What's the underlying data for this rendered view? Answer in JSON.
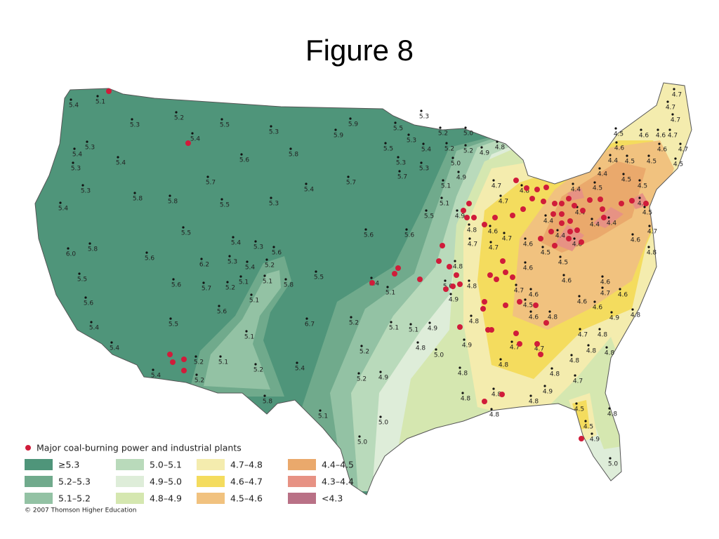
{
  "header": {
    "title": "Figure 8"
  },
  "map": {
    "labels": [
      "5.4",
      "5.1",
      "5.2",
      "5.5",
      "5.3",
      "5.9",
      "5.3",
      "5.3",
      "5.4",
      "5.4",
      "5.3",
      "5.4",
      "5.6",
      "5.8",
      "5.9",
      "5.5",
      "5.3",
      "5.2",
      "5.0",
      "5.5",
      "5.3",
      "5.4",
      "5.2",
      "5.2",
      "4.9",
      "4.8",
      "5.3",
      "5.3",
      "5.7",
      "5.0",
      "4.9",
      "5.3",
      "5.4",
      "5.8",
      "5.8",
      "5.7",
      "5.4",
      "5.7",
      "5.5",
      "5.3",
      "5.1",
      "5.1",
      "5.5",
      "4.9",
      "5.6",
      "5.6",
      "5.5",
      "5.8",
      "6.0",
      "5.5",
      "5.6",
      "5.6",
      "6.2",
      "5.7",
      "5.6",
      "5.4",
      "5.3",
      "5.6",
      "5.3",
      "5.4",
      "5.2",
      "5.1",
      "5.1",
      "5.2",
      "5.1",
      "5.8",
      "5.5",
      "5.4",
      "5.1",
      "5.6",
      "5.5",
      "5.4",
      "5.4",
      "6.7",
      "5.1",
      "5.2",
      "5.1",
      "5.1",
      "4.9",
      "5.2",
      "5.1",
      "5.2",
      "5.4",
      "5.2",
      "5.4",
      "5.2",
      "5.2",
      "5.0",
      "4.8",
      "4.9",
      "4.9",
      "5.8",
      "5.1",
      "5.0",
      "5.0",
      "4.8",
      "4.8",
      "4.8",
      "4.8",
      "4.7",
      "4.7",
      "4.7",
      "4.5",
      "4.6",
      "4.6",
      "4.7",
      "4.6",
      "4.6",
      "4.7",
      "4.4",
      "4.5",
      "4.5",
      "4.5",
      "4.4",
      "4.5",
      "4.5",
      "4.4",
      "4.5",
      "4.6",
      "4.8",
      "4.7",
      "4.7",
      "4.5",
      "4.4",
      "4.4",
      "4.4",
      "4.4",
      "4.7",
      "4.6",
      "4.8",
      "4.8",
      "4.7",
      "4.6",
      "4.7",
      "4.7",
      "4.6",
      "4.5",
      "4.4",
      "4.6",
      "4.5",
      "4.8",
      "4.6",
      "4.6",
      "4.6",
      "4.7",
      "4.6",
      "4.6",
      "4.6",
      "4.7",
      "4.6",
      "4.5",
      "4.6",
      "4.8",
      "4.9",
      "4.8",
      "4.8",
      "4.9",
      "5.0",
      "4.8",
      "4.7",
      "4.8",
      "4.8",
      "4.8",
      "4.7",
      "4.7",
      "4.8",
      "4.8",
      "4.7",
      "4.9",
      "4.8",
      "4.5",
      "4.8",
      "4.5",
      "4.9",
      "5.0",
      "4.8"
    ]
  },
  "legend": {
    "marker_label": "Major coal-burning power and industrial plants",
    "entries": [
      {
        "label": "≥5.3",
        "color": "#4f957a"
      },
      {
        "label": "5.2–5.3",
        "color": "#70aa8c"
      },
      {
        "label": "5.1–5.2",
        "color": "#93c2a4"
      },
      {
        "label": "5.0–5.1",
        "color": "#b9dabb"
      },
      {
        "label": "4.9–5.0",
        "color": "#deedd9"
      },
      {
        "label": "4.8–4.9",
        "color": "#d5e7b0"
      },
      {
        "label": "4.7–4.8",
        "color": "#f4ecae"
      },
      {
        "label": "4.6–4.7",
        "color": "#f4dc5e"
      },
      {
        "label": "4.5–4.6",
        "color": "#f1c27f"
      },
      {
        "label": "4.4–4.5",
        "color": "#eaa96c"
      },
      {
        "label": "4.3–4.4",
        "color": "#e79284"
      },
      {
        "label": "<4.3",
        "color": "#b97186"
      }
    ]
  },
  "credit": "© 2007 Thomson Higher Education"
}
